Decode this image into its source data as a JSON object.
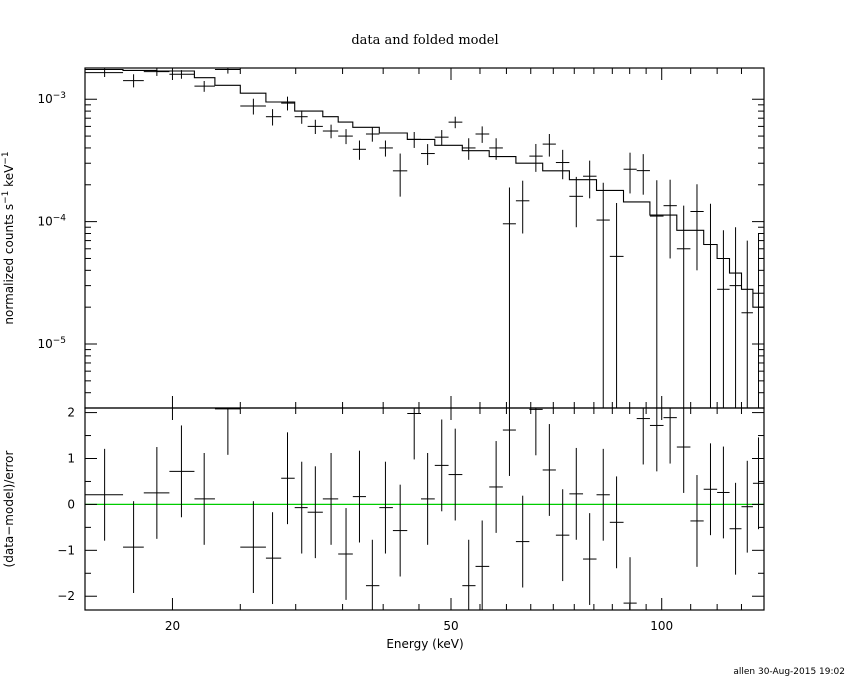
{
  "chart_data": {
    "type": "scatter",
    "title": "data and folded model",
    "footer": "allen 30-Aug-2015 19:02",
    "x_axis": {
      "label": "Energy (keV)",
      "scale": "log",
      "range": [
        15,
        140
      ],
      "major_ticks": [
        20,
        50,
        100
      ],
      "tick_labels": [
        "20",
        "50",
        "100"
      ]
    },
    "colors": {
      "axes": "#000000",
      "data": "#000000",
      "model": "#000000",
      "zero_line": "#00cc00"
    },
    "top_panel": {
      "ylabel_parts": [
        "normalized counts s",
        "−1",
        " keV",
        "−1"
      ],
      "y_scale": "log",
      "ylim": [
        3e-06,
        0.0018
      ],
      "major_ticks": [
        1e-05,
        0.0001,
        0.001
      ],
      "tick_labels": [
        {
          "base": "10",
          "exp": "−5"
        },
        {
          "base": "10",
          "exp": "−4"
        },
        {
          "base": "10",
          "exp": "−3"
        }
      ],
      "series": [
        {
          "kind": "data_points",
          "points": [
            [
              16.0,
              15.0,
              17.0,
              0.00165,
              0.00152,
              0.00178
            ],
            [
              17.6,
              17.0,
              18.2,
              0.00142,
              0.00125,
              0.0016
            ],
            [
              19.0,
              18.2,
              19.8,
              0.00168,
              0.00155,
              0.00181
            ],
            [
              20.6,
              19.8,
              21.5,
              0.0016,
              0.00147,
              0.00173
            ],
            [
              22.2,
              21.5,
              23.0,
              0.00128,
              0.00115,
              0.00141
            ],
            [
              24.0,
              23.0,
              25.0,
              0.00175,
              0.00162,
              0.00188
            ],
            [
              26.1,
              25.0,
              27.2,
              0.00088,
              0.00075,
              0.00101
            ],
            [
              27.8,
              27.2,
              28.6,
              0.00072,
              0.00061,
              0.00083
            ],
            [
              29.2,
              28.6,
              29.9,
              0.00093,
              0.00081,
              0.00105
            ],
            [
              30.6,
              29.9,
              31.2,
              0.00072,
              0.00063,
              0.00081
            ],
            [
              32.0,
              31.2,
              32.8,
              0.0006,
              0.00052,
              0.00068
            ],
            [
              33.7,
              32.8,
              34.5,
              0.00055,
              0.00048,
              0.00062
            ],
            [
              35.4,
              34.5,
              36.2,
              0.0005,
              0.00043,
              0.00057
            ],
            [
              37.0,
              36.2,
              37.8,
              0.00039,
              0.00032,
              0.00046
            ],
            [
              38.6,
              37.8,
              39.5,
              0.00052,
              0.00045,
              0.00059
            ],
            [
              40.3,
              39.5,
              41.3,
              0.0004,
              0.00034,
              0.00046
            ],
            [
              42.3,
              41.3,
              43.3,
              0.00026,
              0.00016,
              0.00036
            ],
            [
              44.3,
              43.3,
              45.3,
              0.00047,
              0.0004,
              0.00054
            ],
            [
              46.3,
              45.3,
              47.4,
              0.00036,
              0.00029,
              0.00043
            ],
            [
              48.5,
              47.4,
              49.6,
              0.00049,
              0.00042,
              0.00056
            ],
            [
              50.7,
              49.6,
              51.9,
              0.00065,
              0.00058,
              0.00072
            ],
            [
              53.0,
              51.9,
              54.2,
              0.0004,
              0.00032,
              0.00048
            ],
            [
              55.4,
              54.2,
              56.7,
              0.00052,
              0.00044,
              0.0006
            ],
            [
              58.0,
              56.7,
              59.3,
              0.0004,
              0.00032,
              0.00048
            ],
            [
              60.6,
              59.3,
              61.9,
              9.6e-05,
              1e-06,
              0.00019
            ],
            [
              63.3,
              61.9,
              64.7,
              0.000148,
              8e-05,
              0.000216
            ],
            [
              66.1,
              64.7,
              67.6,
              0.000343,
              0.000255,
              0.000431
            ],
            [
              69.1,
              67.6,
              70.6,
              0.00043,
              0.00034,
              0.00052
            ],
            [
              72.2,
              70.6,
              73.8,
              0.000304,
              0.000222,
              0.000386
            ],
            [
              75.5,
              73.8,
              77.2,
              0.000161,
              9e-05,
              0.000232
            ],
            [
              78.9,
              77.2,
              80.7,
              0.000235,
              0.000155,
              0.000315
            ],
            [
              82.5,
              80.7,
              84.3,
              0.000103,
              1e-06,
              0.000208
            ],
            [
              86.2,
              84.3,
              88.2,
              5.2e-05,
              1e-06,
              0.000142
            ],
            [
              90.1,
              88.2,
              92.1,
              0.000268,
              0.00017,
              0.000366
            ],
            [
              94.1,
              92.1,
              96.2,
              0.000261,
              0.000166,
              0.000356
            ],
            [
              98.4,
              96.2,
              100.6,
              0.000111,
              1e-06,
              0.000218
            ],
            [
              102.8,
              100.6,
              105.1,
              0.000135,
              5e-05,
              0.00022
            ],
            [
              107.5,
              105.1,
              109.9,
              6e-05,
              1e-06,
              0.000135
            ],
            [
              112.3,
              109.9,
              114.8,
              0.000121,
              4e-05,
              0.000202
            ],
            [
              117.4,
              114.8,
              120.0,
              6.5e-05,
              1e-06,
              0.00014
            ],
            [
              122.5,
              120.0,
              125.0,
              2.8e-05,
              1e-06,
              8.5e-05
            ],
            [
              127.5,
              125.0,
              130.0,
              3e-05,
              1e-06,
              9e-05
            ],
            [
              132.5,
              130.0,
              135.0,
              1.8e-05,
              1e-06,
              7e-05
            ],
            [
              137.5,
              135.0,
              140.0,
              2.6e-05,
              1e-06,
              8e-05
            ]
          ]
        },
        {
          "kind": "model_step",
          "bins": [
            [
              15.0,
              17.0,
              0.00175
            ],
            [
              17.0,
              19.0,
              0.00172
            ],
            [
              19.0,
              21.5,
              0.0017
            ],
            [
              21.5,
              23.0,
              0.0015
            ],
            [
              23.0,
              25.0,
              0.0013
            ],
            [
              25.0,
              27.2,
              0.00112
            ],
            [
              27.2,
              29.9,
              0.00095
            ],
            [
              29.9,
              32.8,
              0.0008
            ],
            [
              32.8,
              34.5,
              0.00072
            ],
            [
              34.5,
              36.2,
              0.00065
            ],
            [
              36.2,
              39.5,
              0.00059
            ],
            [
              39.5,
              43.3,
              0.00053
            ],
            [
              43.3,
              47.4,
              0.00047
            ],
            [
              47.4,
              51.9,
              0.00042
            ],
            [
              51.9,
              56.7,
              0.00038
            ],
            [
              56.7,
              61.9,
              0.00034
            ],
            [
              61.9,
              67.6,
              0.0003
            ],
            [
              67.6,
              73.8,
              0.00026
            ],
            [
              73.8,
              80.7,
              0.00022
            ],
            [
              80.7,
              88.2,
              0.00018
            ],
            [
              88.2,
              96.2,
              0.000145
            ],
            [
              96.2,
              105.1,
              0.000113
            ],
            [
              105.1,
              114.8,
              8.5e-05
            ],
            [
              114.8,
              120.0,
              6.5e-05
            ],
            [
              120.0,
              125.0,
              5e-05
            ],
            [
              125.0,
              130.0,
              3.8e-05
            ],
            [
              130.0,
              135.0,
              2.8e-05
            ],
            [
              135.0,
              140.0,
              2e-05
            ]
          ]
        }
      ]
    },
    "bottom_panel": {
      "ylabel": "(data−model)/error",
      "ylim": [
        -2.3,
        2.1
      ],
      "major_ticks": [
        -2,
        -1,
        0,
        1,
        2
      ],
      "tick_labels": [
        "−2",
        "−1",
        "0",
        "1",
        "2"
      ],
      "zero_line": 0,
      "residuals": [
        [
          16.0,
          15.0,
          17.0,
          0.21
        ],
        [
          17.6,
          17.0,
          18.2,
          -0.93
        ],
        [
          19.0,
          18.2,
          19.8,
          0.25
        ],
        [
          20.6,
          19.8,
          21.5,
          0.72
        ],
        [
          22.2,
          21.5,
          23.0,
          0.12
        ],
        [
          24.0,
          23.0,
          25.0,
          2.08
        ],
        [
          26.1,
          25.0,
          27.2,
          -0.93
        ],
        [
          27.8,
          27.2,
          28.6,
          -1.17
        ],
        [
          29.2,
          28.6,
          29.9,
          0.57
        ],
        [
          30.6,
          29.9,
          31.2,
          -0.07
        ],
        [
          32.0,
          31.2,
          32.8,
          -0.17
        ],
        [
          33.7,
          32.8,
          34.5,
          0.12
        ],
        [
          35.4,
          34.5,
          36.2,
          -1.08
        ],
        [
          37.0,
          36.2,
          37.8,
          0.17
        ],
        [
          38.6,
          37.8,
          39.5,
          -1.77
        ],
        [
          40.3,
          39.5,
          41.3,
          -0.07
        ],
        [
          42.3,
          41.3,
          43.3,
          -0.57
        ],
        [
          44.3,
          43.3,
          45.3,
          1.98
        ],
        [
          46.3,
          45.3,
          47.4,
          0.12
        ],
        [
          48.5,
          47.4,
          49.6,
          0.85
        ],
        [
          50.7,
          49.6,
          51.9,
          0.65
        ],
        [
          53.0,
          51.9,
          54.2,
          -1.77
        ],
        [
          55.4,
          54.2,
          56.7,
          -1.35
        ],
        [
          58.0,
          56.7,
          59.3,
          0.38
        ],
        [
          60.6,
          59.3,
          61.9,
          1.62
        ],
        [
          63.3,
          61.9,
          64.7,
          -0.81
        ],
        [
          66.1,
          64.7,
          67.6,
          2.07
        ],
        [
          69.1,
          67.6,
          70.6,
          0.75
        ],
        [
          72.2,
          70.6,
          73.8,
          -0.67
        ],
        [
          75.5,
          73.8,
          77.2,
          0.23
        ],
        [
          78.9,
          77.2,
          80.7,
          -1.19
        ],
        [
          82.5,
          80.7,
          84.3,
          0.21
        ],
        [
          86.2,
          84.3,
          88.2,
          -0.39
        ],
        [
          90.1,
          88.2,
          92.1,
          -2.15
        ],
        [
          94.1,
          92.1,
          96.2,
          1.87
        ],
        [
          98.4,
          96.2,
          100.6,
          1.72
        ],
        [
          102.8,
          100.6,
          105.1,
          1.89
        ],
        [
          107.5,
          105.1,
          109.9,
          1.25
        ],
        [
          112.3,
          109.9,
          114.8,
          -0.36
        ],
        [
          117.4,
          114.8,
          120.0,
          0.33
        ],
        [
          122.5,
          120.0,
          125.0,
          0.26
        ],
        [
          127.5,
          125.0,
          130.0,
          -0.53
        ],
        [
          132.5,
          130.0,
          135.0,
          -0.05
        ],
        [
          137.5,
          135.0,
          140.0,
          0.46
        ]
      ]
    }
  }
}
